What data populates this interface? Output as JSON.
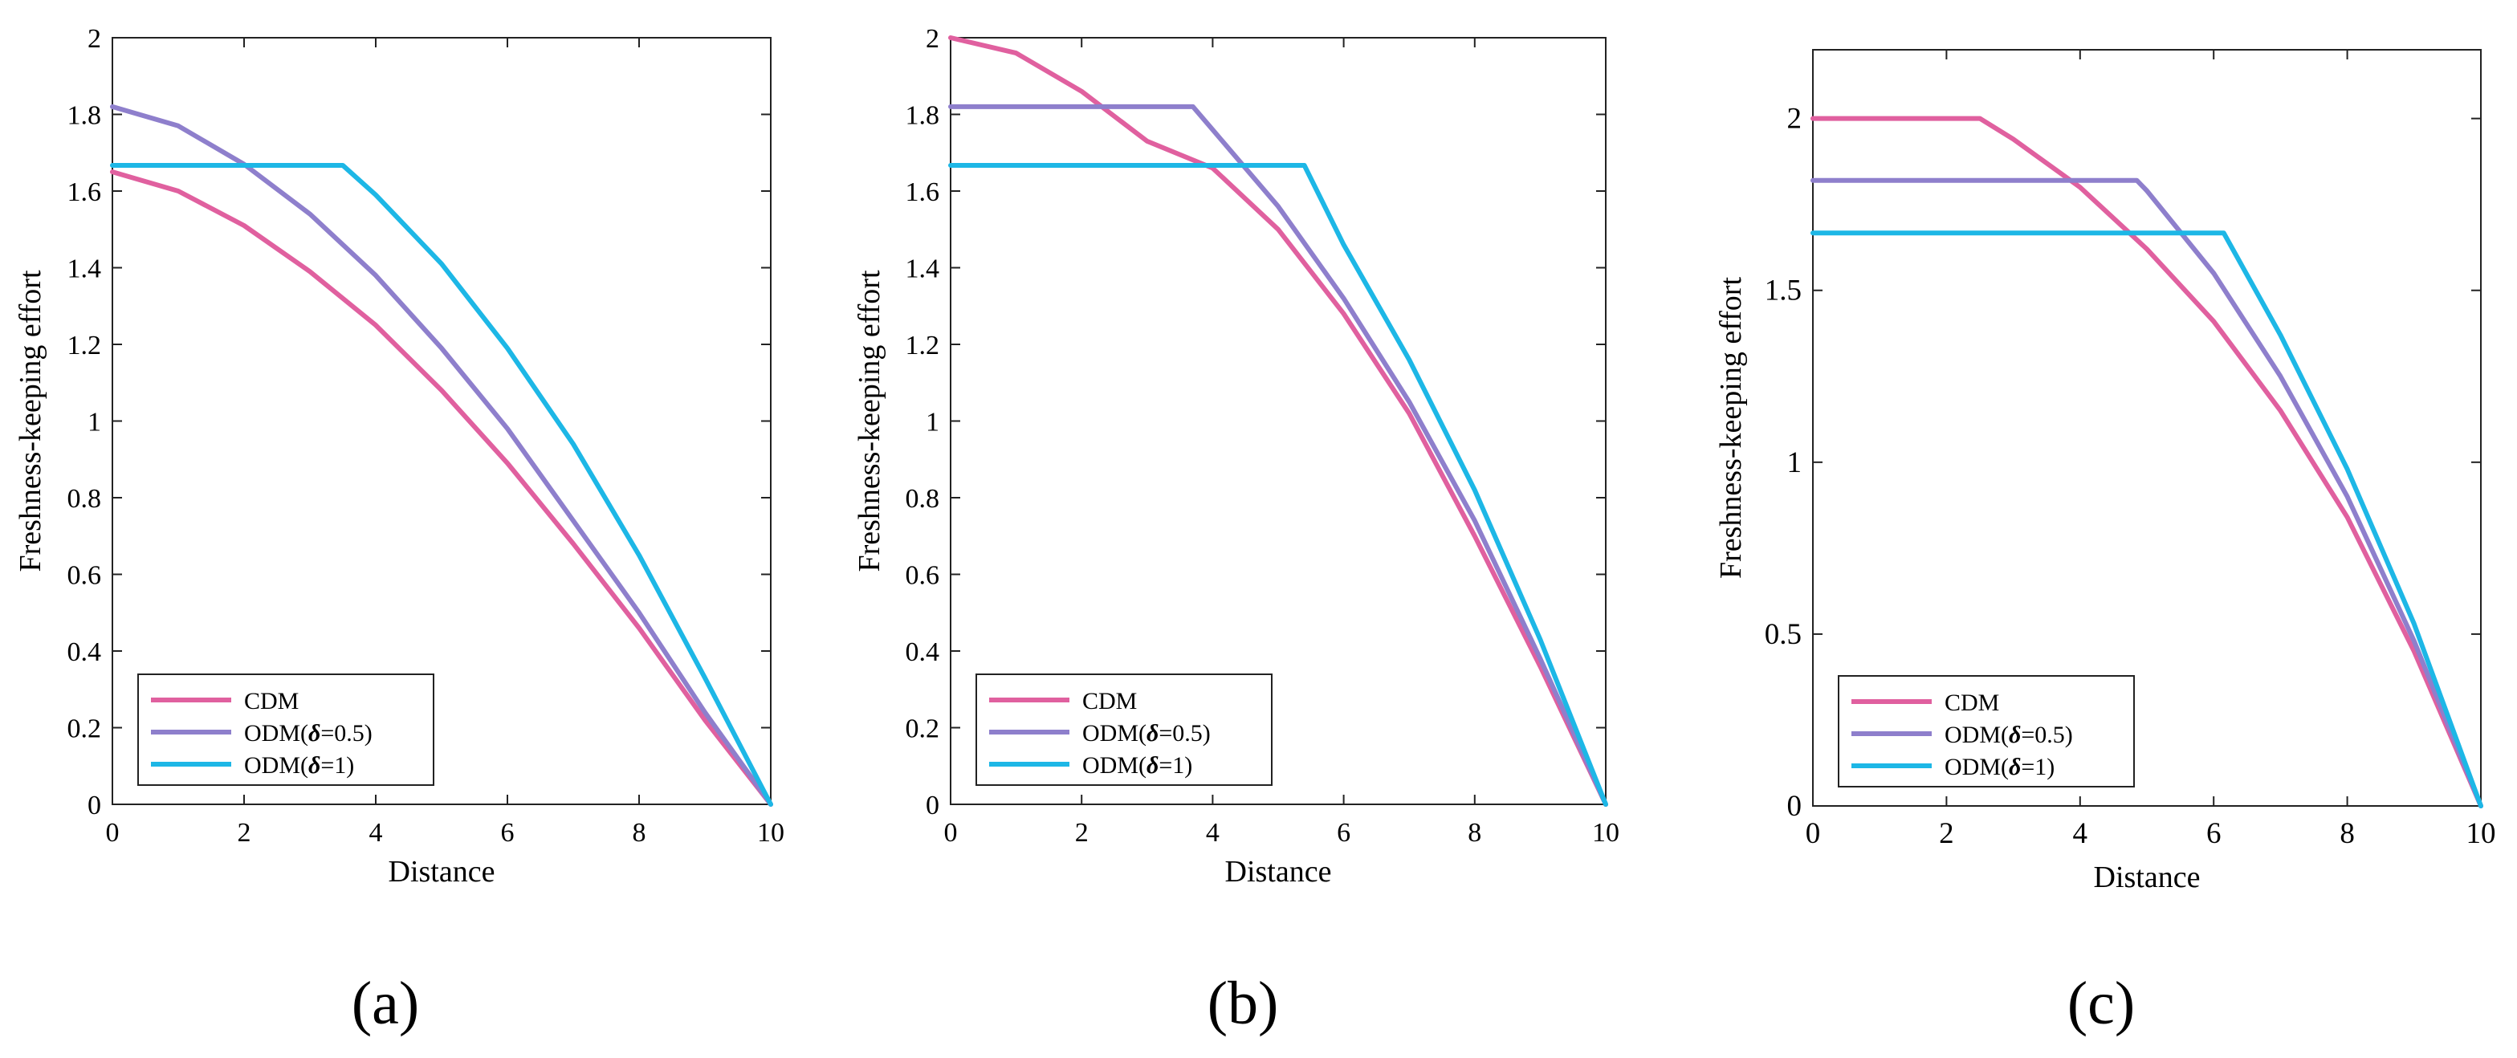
{
  "chart_data": [
    {
      "type": "line",
      "panel_label": "(a)",
      "xlabel": "Distance",
      "ylabel": "Freshness-keeping effort",
      "xlim": [
        0,
        10
      ],
      "ylim": [
        0,
        2
      ],
      "xticks": [
        0,
        2,
        4,
        6,
        8,
        10
      ],
      "yticks": [
        0,
        0.2,
        0.4,
        0.6,
        0.8,
        1,
        1.2,
        1.4,
        1.6,
        1.8,
        2
      ],
      "grid": false,
      "legend_position": "bottom-left",
      "series": [
        {
          "name": "CDM",
          "label_prefix": "CDM",
          "label_delta": "",
          "label_suffix": "",
          "color": "#E0609F",
          "x": [
            0,
            1,
            2,
            3,
            4,
            5,
            6,
            7,
            8,
            9,
            10
          ],
          "y": [
            1.65,
            1.6,
            1.51,
            1.39,
            1.25,
            1.08,
            0.89,
            0.68,
            0.46,
            0.22,
            0
          ]
        },
        {
          "name": "ODM(δ=0.5)",
          "label_prefix": "ODM(",
          "label_delta": "δ",
          "label_suffix": "=0.5)",
          "color": "#8E7FCC",
          "x": [
            0,
            1,
            2,
            3,
            4,
            5,
            6,
            7,
            8,
            9,
            10
          ],
          "y": [
            1.82,
            1.77,
            1.67,
            1.54,
            1.38,
            1.19,
            0.98,
            0.74,
            0.5,
            0.24,
            0
          ]
        },
        {
          "name": "ODM(δ=1)",
          "label_prefix": "ODM(",
          "label_delta": "δ",
          "label_suffix": "=1)",
          "color": "#1DB7E6",
          "x": [
            0,
            3.5,
            4,
            5,
            6,
            7,
            8,
            9,
            10
          ],
          "y": [
            1.667,
            1.667,
            1.59,
            1.41,
            1.19,
            0.94,
            0.65,
            0.33,
            0
          ]
        }
      ]
    },
    {
      "type": "line",
      "panel_label": "(b)",
      "xlabel": "Distance",
      "ylabel": "Freshness-keeping effort",
      "xlim": [
        0,
        10
      ],
      "ylim": [
        0,
        2
      ],
      "xticks": [
        0,
        2,
        4,
        6,
        8,
        10
      ],
      "yticks": [
        0,
        0.2,
        0.4,
        0.6,
        0.8,
        1,
        1.2,
        1.4,
        1.6,
        1.8,
        2
      ],
      "grid": false,
      "legend_position": "bottom-left",
      "series": [
        {
          "name": "CDM",
          "label_prefix": "CDM",
          "label_delta": "",
          "label_suffix": "",
          "color": "#E0609F",
          "x": [
            0,
            1,
            2,
            3,
            4,
            5,
            6,
            7,
            8,
            9,
            10
          ],
          "y": [
            2.0,
            1.96,
            1.86,
            1.73,
            1.66,
            1.5,
            1.28,
            1.02,
            0.7,
            0.36,
            0
          ]
        },
        {
          "name": "ODM(δ=0.5)",
          "label_prefix": "ODM(",
          "label_delta": "δ",
          "label_suffix": "=0.5)",
          "color": "#8E7FCC",
          "x": [
            0,
            3.7,
            4,
            5,
            6,
            7,
            8,
            9,
            10
          ],
          "y": [
            1.82,
            1.82,
            1.76,
            1.56,
            1.32,
            1.05,
            0.74,
            0.38,
            0
          ]
        },
        {
          "name": "ODM(δ=1)",
          "label_prefix": "ODM(",
          "label_delta": "δ",
          "label_suffix": "=1)",
          "color": "#1DB7E6",
          "x": [
            0,
            5.4,
            6,
            7,
            8,
            9,
            10
          ],
          "y": [
            1.667,
            1.667,
            1.46,
            1.16,
            0.82,
            0.43,
            0
          ]
        }
      ]
    },
    {
      "type": "line",
      "panel_label": "(c)",
      "xlabel": "Distance",
      "ylabel": "Freshness-keeping effort",
      "xlim": [
        0,
        10
      ],
      "ylim": [
        0,
        2.2
      ],
      "xticks": [
        0,
        2,
        4,
        6,
        8,
        10
      ],
      "yticks": [
        0,
        0.5,
        1,
        1.5,
        2
      ],
      "grid": false,
      "legend_position": "bottom-left",
      "series": [
        {
          "name": "CDM",
          "label_prefix": "CDM",
          "label_delta": "",
          "label_suffix": "",
          "color": "#E0609F",
          "x": [
            0,
            2.5,
            3,
            4,
            5,
            6,
            7,
            8,
            9,
            10
          ],
          "y": [
            2.0,
            2.0,
            1.94,
            1.8,
            1.62,
            1.41,
            1.15,
            0.84,
            0.45,
            0
          ]
        },
        {
          "name": "ODM(δ=0.5)",
          "label_prefix": "ODM(",
          "label_delta": "δ",
          "label_suffix": "=0.5)",
          "color": "#8E7FCC",
          "x": [
            0,
            4.85,
            5,
            6,
            7,
            8,
            9,
            10
          ],
          "y": [
            1.82,
            1.82,
            1.79,
            1.55,
            1.25,
            0.9,
            0.48,
            0
          ]
        },
        {
          "name": "ODM(δ=1)",
          "label_prefix": "ODM(",
          "label_delta": "δ",
          "label_suffix": "=1)",
          "color": "#1DB7E6",
          "x": [
            0,
            6.15,
            7,
            8,
            9,
            10
          ],
          "y": [
            1.667,
            1.667,
            1.37,
            0.98,
            0.53,
            0
          ]
        }
      ]
    }
  ]
}
